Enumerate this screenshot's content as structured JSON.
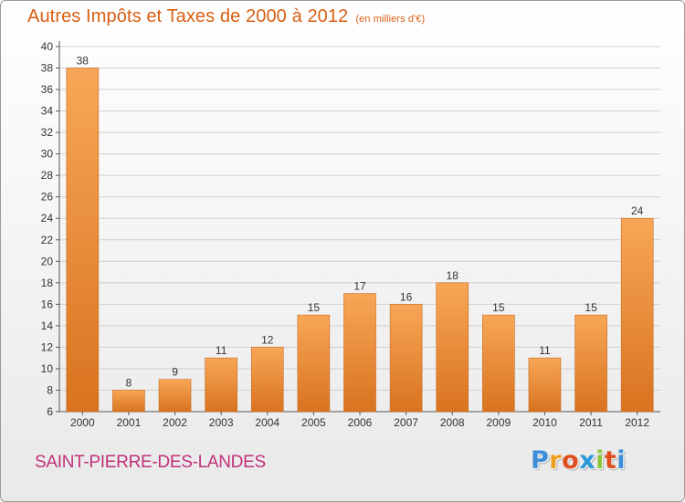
{
  "header": {
    "title": "Autres Impôts et Taxes de 2000 à 2012",
    "unit": "(en milliers d'€)"
  },
  "footer": {
    "commune": "SAINT-PIERRE-DES-LANDES",
    "logo_letters": [
      "P",
      "r",
      "o",
      "x",
      "i",
      "t",
      "i"
    ],
    "logo_colors": [
      "#3a8fd8",
      "#f0a020",
      "#e04e20",
      "#2a9ad8",
      "#8cc63f",
      "#e04e20",
      "#3a8fd8"
    ]
  },
  "colors": {
    "bar_top": "#f7a757",
    "bar_bottom": "#d9731f",
    "title": "#d95f14",
    "commune": "#c0317a",
    "grid": "#cfcfcf"
  },
  "chart_data": {
    "type": "bar",
    "categories": [
      "2000",
      "2001",
      "2002",
      "2003",
      "2004",
      "2005",
      "2006",
      "2007",
      "2008",
      "2009",
      "2010",
      "2011",
      "2012"
    ],
    "values": [
      38,
      8,
      9,
      11,
      12,
      15,
      17,
      16,
      18,
      15,
      11,
      15,
      24
    ],
    "ylim": [
      6,
      40
    ],
    "yticks": [
      6,
      8,
      10,
      12,
      14,
      16,
      18,
      20,
      22,
      24,
      26,
      28,
      30,
      32,
      34,
      36,
      38,
      40
    ],
    "grid": true,
    "data_labels": true
  }
}
